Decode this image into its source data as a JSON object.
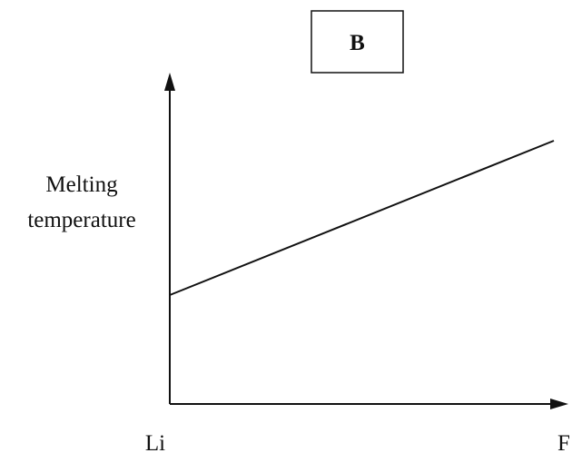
{
  "panel_label": "B",
  "y_axis_label": [
    "Melting",
    "temperature"
  ],
  "x_axis_start": "Li",
  "x_axis_end": "F"
}
